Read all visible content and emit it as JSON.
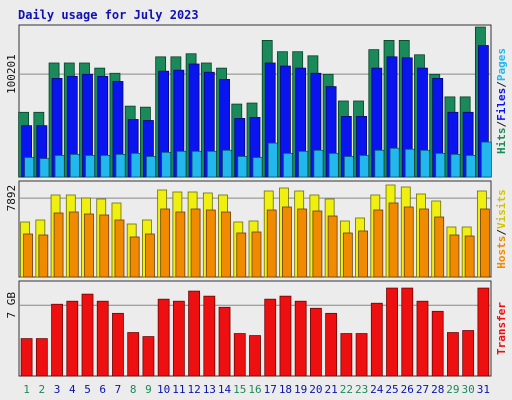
{
  "chart_data": {
    "type": "bar",
    "title": "Daily usage for July 2023",
    "colors": {
      "hits": "#1a8a5a",
      "files": "#0a14ee",
      "pages": "#22b8ee",
      "visits": "#f0f010",
      "hosts": "#f08a00",
      "kbytes": "#ee1010",
      "weekend_label": "#1a8a5a",
      "weekday_label": "#0a14aa",
      "grid": "#888888"
    },
    "categories": [
      "1",
      "2",
      "3",
      "4",
      "5",
      "6",
      "7",
      "8",
      "9",
      "10",
      "11",
      "12",
      "13",
      "14",
      "15",
      "16",
      "17",
      "18",
      "19",
      "20",
      "21",
      "22",
      "23",
      "24",
      "25",
      "26",
      "27",
      "28",
      "29",
      "30",
      "31"
    ],
    "weekend_days": [
      1,
      2,
      8,
      9,
      15,
      16,
      22,
      23,
      29,
      30
    ],
    "panels": [
      {
        "id": "hits-files-pages",
        "tick_label": "100201",
        "tick_value": 100201,
        "ymax": 148000,
        "legend": [
          {
            "text": "Hits",
            "color": "#1a8a5a"
          },
          {
            "text": "/",
            "color": "#222222"
          },
          {
            "text": "Files",
            "color": "#0a14ee"
          },
          {
            "text": "/",
            "color": "#222222"
          },
          {
            "text": "Pages",
            "color": "#22b8ee"
          }
        ],
        "series": [
          {
            "name": "Hits",
            "key": "hits",
            "values": [
              63000,
              63000,
              111000,
              111000,
              111000,
              106000,
              101000,
              69000,
              68000,
              117000,
              117000,
              120000,
              111000,
              106000,
              71000,
              72000,
              133000,
              122000,
              122000,
              118000,
              100000,
              74000,
              74000,
              124000,
              133000,
              133000,
              119000,
              100000,
              78000,
              78000,
              146000
            ]
          },
          {
            "name": "Files",
            "key": "files",
            "values": [
              50000,
              50000,
              96000,
              98000,
              100000,
              98000,
              93000,
              56000,
              55000,
              103000,
              104000,
              110000,
              102000,
              95000,
              57000,
              58000,
              111000,
              108000,
              106000,
              101000,
              88000,
              59000,
              59000,
              106000,
              117000,
              116000,
              106000,
              96000,
              63000,
              63000,
              128000
            ]
          },
          {
            "name": "Pages",
            "key": "pages",
            "values": [
              19000,
              18000,
              21000,
              22000,
              21000,
              21000,
              22000,
              23000,
              20000,
              24000,
              25000,
              25000,
              25000,
              26000,
              20000,
              19000,
              33000,
              23000,
              25000,
              26000,
              23000,
              20000,
              21000,
              26000,
              28000,
              27000,
              26000,
              23000,
              22000,
              21000,
              34000
            ]
          }
        ]
      },
      {
        "id": "visits-sites",
        "tick_label": "7892",
        "tick_value": 7892,
        "ymax": 9600,
        "legend": [
          {
            "text": "Hosts",
            "color": "#f08a00"
          },
          {
            "text": "/",
            "color": "#222222"
          },
          {
            "text": "Visits",
            "color": "#d4c400"
          }
        ],
        "series": [
          {
            "name": "Visits",
            "key": "visits",
            "values": [
              5500,
              5700,
              8200,
              8200,
              7900,
              7800,
              7400,
              5300,
              5700,
              8700,
              8500,
              8500,
              8400,
              8200,
              5500,
              5600,
              8600,
              8900,
              8600,
              8200,
              7800,
              5600,
              5900,
              8200,
              9200,
              9000,
              8300,
              7600,
              5000,
              5000,
              8600
            ]
          },
          {
            "name": "Hosts",
            "key": "hosts",
            "values": [
              4300,
              4200,
              6400,
              6500,
              6300,
              6200,
              5700,
              4000,
              4300,
              6800,
              6500,
              6800,
              6700,
              6500,
              4400,
              4500,
              6700,
              7000,
              6800,
              6600,
              6100,
              4400,
              4600,
              6700,
              7400,
              7000,
              6800,
              6000,
              4200,
              4100,
              6800
            ]
          }
        ]
      },
      {
        "id": "kbytes",
        "tick_label": "7 GB",
        "tick_value": 7,
        "ymax": 9.4,
        "legend": [
          {
            "text": "Transfer",
            "color": "#ee1010"
          }
        ],
        "series": [
          {
            "name": "Transfer",
            "key": "kbytes",
            "values": [
              3.7,
              3.7,
              7.1,
              7.4,
              8.1,
              7.4,
              6.2,
              4.3,
              3.9,
              7.6,
              7.4,
              8.4,
              7.9,
              6.8,
              4.2,
              4.0,
              7.6,
              7.9,
              7.4,
              6.7,
              6.2,
              4.2,
              4.2,
              7.2,
              8.7,
              8.7,
              7.4,
              6.4,
              4.3,
              4.5,
              8.7
            ]
          }
        ]
      }
    ]
  }
}
